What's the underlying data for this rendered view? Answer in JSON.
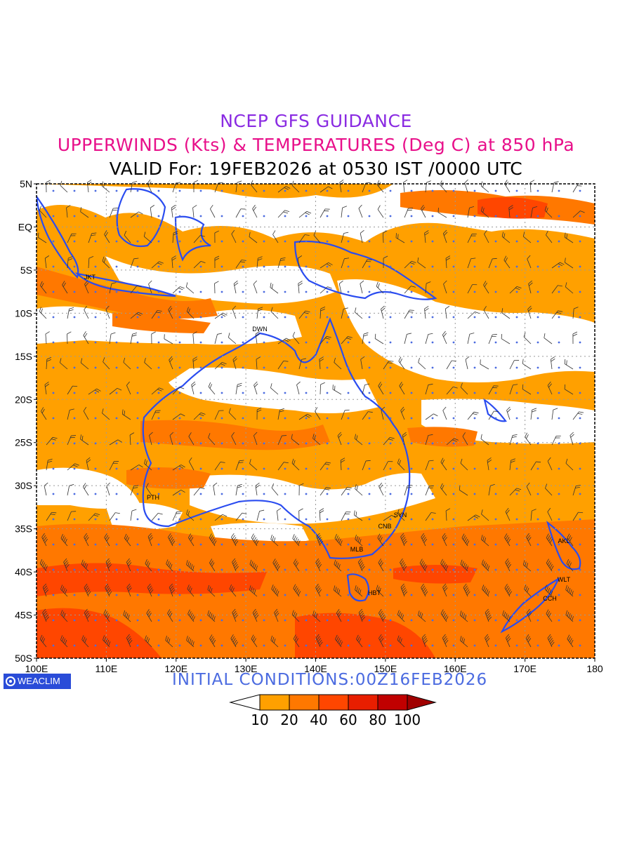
{
  "header": {
    "line1": "NCEP GFS GUIDANCE",
    "line2": "UPPERWINDS (Kts) & TEMPERATURES (Deg C) at 850 hPa",
    "line3": "VALID For: 19FEB2026 at 0530 IST /0000 UTC"
  },
  "footer": {
    "logo_text": "WEACLIM",
    "initial_conditions": "INITIAL CONDITIONS:00Z16FEB2026"
  },
  "map": {
    "lon_labels": [
      "100E",
      "110E",
      "120E",
      "130E",
      "140E",
      "150E",
      "160E",
      "170E",
      "180"
    ],
    "lat_labels": [
      "5N",
      "EQ",
      "5S",
      "10S",
      "15S",
      "20S",
      "25S",
      "30S",
      "35S",
      "40S",
      "45S",
      "50S"
    ],
    "stations": [
      {
        "code": "JKT"
      },
      {
        "code": "DWN"
      },
      {
        "code": "PTH"
      },
      {
        "code": "SYN"
      },
      {
        "code": "CNB"
      },
      {
        "code": "MLB"
      },
      {
        "code": "HBT"
      },
      {
        "code": "AKL"
      },
      {
        "code": "WLT"
      },
      {
        "code": "CCH"
      }
    ],
    "colors": {
      "coast": "#2a4cf0",
      "white": "#ffffff",
      "c10": "#ffa000",
      "c20": "#ff7800",
      "c40": "#ff4600",
      "c60": "#e81e00",
      "c80": "#c00000",
      "c100": "#a00000"
    }
  },
  "colorbar": {
    "labels": [
      "10",
      "20",
      "40",
      "60",
      "80",
      "100"
    ],
    "colors": [
      "#ffffff",
      "#ffa000",
      "#ff7800",
      "#ff4600",
      "#e81e00",
      "#c00000",
      "#a00000"
    ]
  }
}
